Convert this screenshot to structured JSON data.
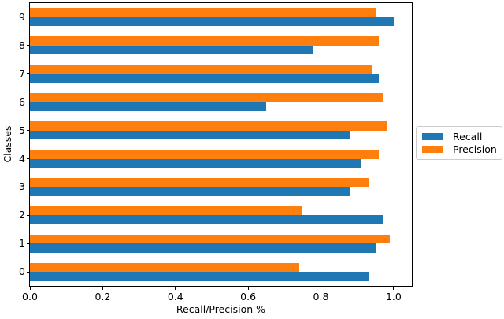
{
  "chart_data": {
    "type": "bar",
    "orientation": "horizontal",
    "title": "",
    "xlabel": "Recall/Precision %",
    "ylabel": "Classes",
    "categories": [
      "0",
      "1",
      "2",
      "3",
      "4",
      "5",
      "6",
      "7",
      "8",
      "9"
    ],
    "series": [
      {
        "name": "Recall",
        "color": "#1f77b4",
        "values": [
          0.93,
          0.95,
          0.97,
          0.88,
          0.91,
          0.88,
          0.65,
          0.96,
          0.78,
          1.0
        ]
      },
      {
        "name": "Precision",
        "color": "#ff7f0e",
        "values": [
          0.74,
          0.99,
          0.75,
          0.93,
          0.96,
          0.98,
          0.97,
          0.94,
          0.96,
          0.95
        ]
      }
    ],
    "xlim": [
      0,
      1.05
    ],
    "xtick_labels": [
      "0.0",
      "0.2",
      "0.4",
      "0.6",
      "0.8",
      "1.0"
    ],
    "xtick_values": [
      0.0,
      0.2,
      0.4,
      0.6,
      0.8,
      1.0
    ],
    "grid": false,
    "legend": {
      "position": "center-right-outside",
      "entries": [
        "Recall",
        "Precision"
      ]
    }
  }
}
